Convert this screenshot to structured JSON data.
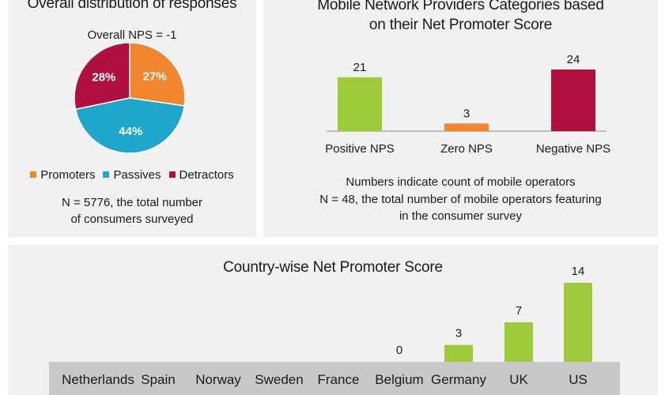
{
  "left_panel": {
    "title": "Overall distribution of responses",
    "overall_nps": "Overall NPS = -1",
    "footnote_line1": "N = 5776, the total number",
    "footnote_line2": "of consumers surveyed"
  },
  "right_panel": {
    "title_line1": "Mobile Network Providers Categories based",
    "title_line2": "on their Net Promoter Score",
    "note_line1": "Numbers indicate count of mobile operators",
    "note_line2": "N = 48, the total number of mobile operators featuring",
    "note_line3": "in the consumer survey"
  },
  "bottom_panel": {
    "title": "Country-wise Net Promoter Score"
  },
  "chart_data": [
    {
      "type": "pie",
      "categories": [
        "Promoters",
        "Passives",
        "Detractors"
      ],
      "values": [
        27,
        44,
        28
      ],
      "labels": [
        "27%",
        "44%",
        "28%"
      ],
      "colors": [
        "#f0862e",
        "#1fa7cb",
        "#b0103f"
      ],
      "legend": "bottom"
    },
    {
      "type": "bar",
      "categories": [
        "Positive NPS",
        "Zero NPS",
        "Negative NPS"
      ],
      "values": [
        21,
        3,
        24
      ],
      "colors": [
        "#9dcb3c",
        "#f0862e",
        "#b0103f"
      ]
    },
    {
      "type": "bar",
      "categories": [
        "Netherlands",
        "Spain",
        "Norway",
        "Sweden",
        "France",
        "Belgium",
        "Germany",
        "UK",
        "US"
      ],
      "values": [
        null,
        null,
        null,
        null,
        null,
        0,
        3,
        7,
        14
      ],
      "value_labels": [
        "",
        "",
        "",
        "",
        "",
        "0",
        "3",
        "7",
        "14"
      ],
      "color": "#9dcb3c",
      "axis_band_color": "#c8c8c8"
    }
  ]
}
